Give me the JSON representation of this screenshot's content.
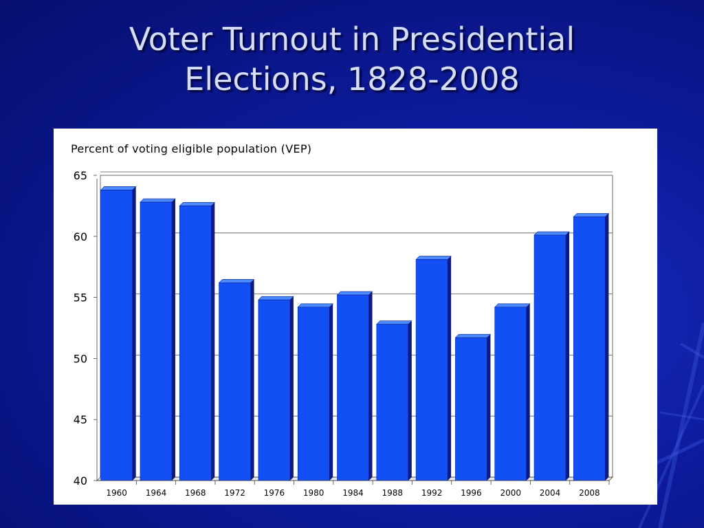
{
  "slide": {
    "title_line1": "Voter Turnout in Presidential",
    "title_line2": "Elections, 1828-2008"
  },
  "colors": {
    "background": "#0c1a9a",
    "bar_front": "#1250f5",
    "bar_top": "#4a8cff",
    "bar_side": "#0a1a8c",
    "title": "#d6def7"
  },
  "chart_data": {
    "type": "bar",
    "title": "",
    "ylabel": "Percent of voting eligible population (VEP)",
    "xlabel": "",
    "categories": [
      "1960",
      "1964",
      "1968",
      "1972",
      "1976",
      "1980",
      "1984",
      "1988",
      "1992",
      "1996",
      "2000",
      "2004",
      "2008"
    ],
    "values": [
      63.8,
      62.8,
      62.5,
      56.2,
      54.8,
      54.2,
      55.2,
      52.8,
      58.1,
      51.7,
      54.2,
      60.1,
      61.6
    ],
    "ylim": [
      40,
      65
    ],
    "yticks": [
      40,
      45,
      50,
      55,
      60,
      65
    ],
    "grid": true,
    "legend": "none"
  }
}
